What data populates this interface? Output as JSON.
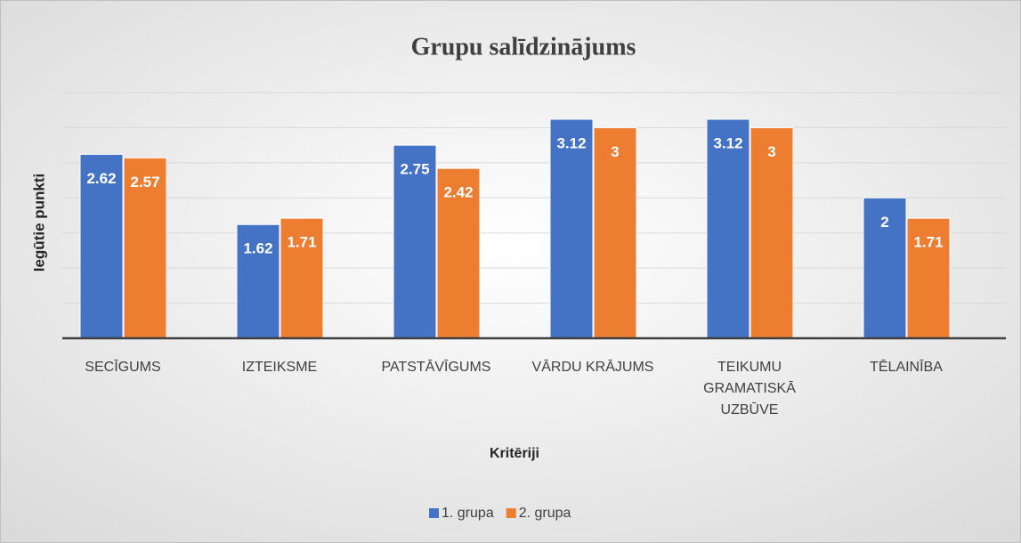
{
  "chart_data": {
    "type": "bar",
    "title": "Grupu salīdzinājums",
    "x_label": "Kritēriji",
    "y_label": "Iegūtie punkti",
    "categories": [
      "SECĪGUMS",
      "IZTEIKSME",
      "PATSTĀVĪGUMS",
      "VĀRDU KRĀJUMS",
      "TEIKUMU GRAMATISKĀ UZBŪVE",
      "TĒLAINĪBA"
    ],
    "series": [
      {
        "name": "1. grupa",
        "color": "#4472c4",
        "values": [
          2.62,
          1.62,
          2.75,
          3.12,
          3.12,
          2
        ]
      },
      {
        "name": "2. grupa",
        "color": "#ed7d31",
        "values": [
          2.57,
          1.71,
          2.42,
          3,
          3,
          1.71
        ]
      }
    ],
    "ylim": [
      0,
      3.5
    ],
    "yticks": [
      0,
      0.5,
      1,
      1.5,
      2,
      2.5,
      3,
      3.5
    ],
    "grid": true,
    "legend": "bottom"
  }
}
